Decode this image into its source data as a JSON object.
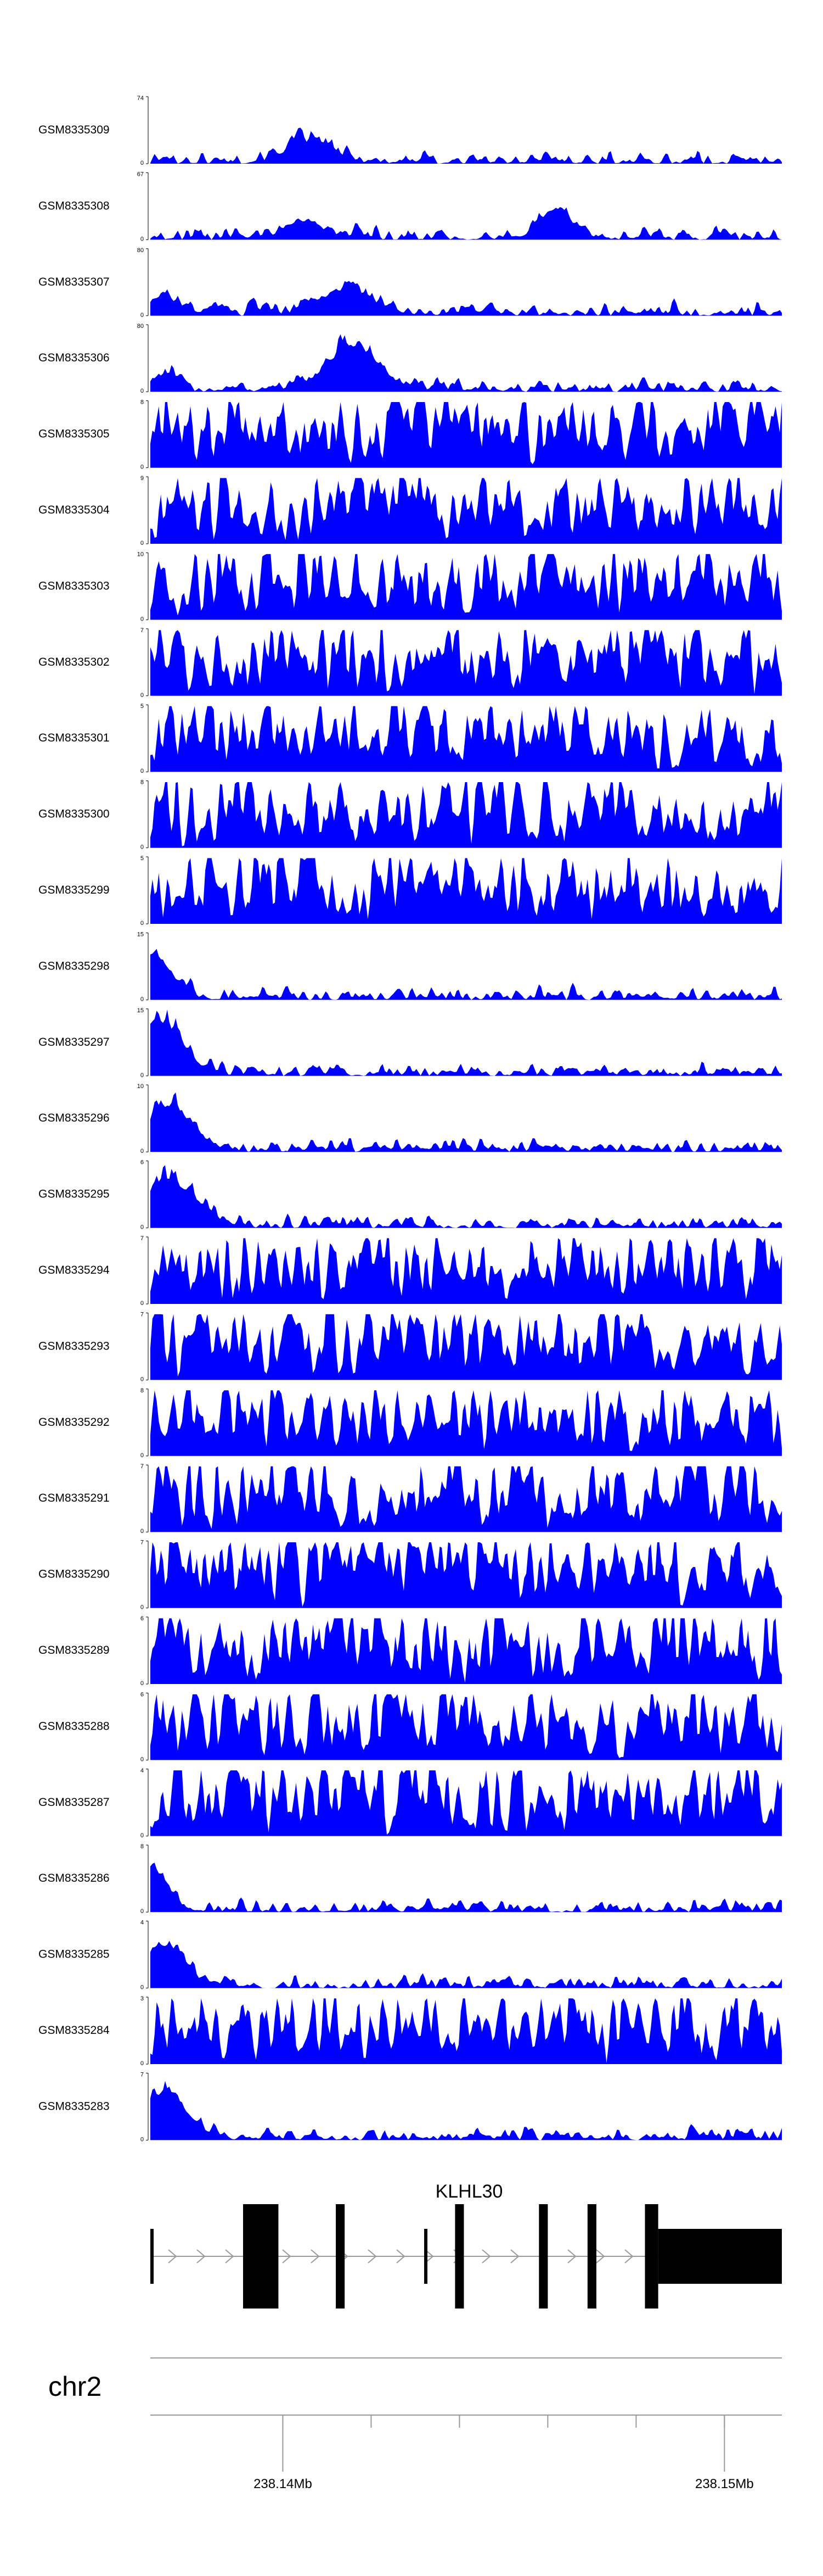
{
  "chart_data": {
    "type": "area",
    "fill_color": "#0000ff",
    "x_range_mb": [
      238.137,
      238.1513
    ],
    "tracks": [
      {
        "label": "GSM8335309",
        "ymax": "74",
        "ymin": "0",
        "peaks": [
          [
            0.25,
            0.45,
            0.7
          ]
        ],
        "seed": 101
      },
      {
        "label": "GSM8335308",
        "ymax": "67",
        "ymin": "0",
        "peaks": [
          [
            0.24,
            0.38,
            0.5
          ],
          [
            0.64,
            0.62,
            0.4
          ]
        ],
        "seed": 102
      },
      {
        "label": "GSM8335307",
        "ymax": "80",
        "ymin": "0",
        "peaks": [
          [
            0.02,
            0.38,
            0.35
          ],
          [
            0.31,
            0.52,
            0.92
          ]
        ],
        "seed": 103
      },
      {
        "label": "GSM8335306",
        "ymax": "80",
        "ymin": "0",
        "peaks": [
          [
            0.02,
            0.3,
            0.25
          ],
          [
            0.32,
            0.95,
            0.8
          ]
        ],
        "seed": 104
      },
      {
        "label": "GSM8335305",
        "ymax": "8",
        "ymin": "0",
        "peaks": [],
        "seed": 105
      },
      {
        "label": "GSM8335304",
        "ymax": "9",
        "ymin": "0",
        "peaks": [],
        "seed": 106
      },
      {
        "label": "GSM8335303",
        "ymax": "10",
        "ymin": "0",
        "peaks": [],
        "seed": 107
      },
      {
        "label": "GSM8335302",
        "ymax": "7",
        "ymin": "0",
        "peaks": [],
        "seed": 108
      },
      {
        "label": "GSM8335301",
        "ymax": "5",
        "ymin": "0",
        "peaks": [],
        "seed": 109
      },
      {
        "label": "GSM8335300",
        "ymax": "8",
        "ymin": "0",
        "peaks": [],
        "seed": 110
      },
      {
        "label": "GSM8335299",
        "ymax": "5",
        "ymin": "0",
        "peaks": [],
        "seed": 111
      },
      {
        "label": "GSM8335298",
        "ymax": "15",
        "ymin": "0",
        "peaks": [
          [
            0.0,
            0.95,
            0.6
          ]
        ],
        "seed": 112
      },
      {
        "label": "GSM8335297",
        "ymax": "15",
        "ymin": "0",
        "peaks": [
          [
            0.0,
            0.9,
            0.6
          ],
          [
            0.04,
            0.5,
            0.5
          ]
        ],
        "seed": 113
      },
      {
        "label": "GSM8335296",
        "ymax": "10",
        "ymin": "0",
        "peaks": [
          [
            0.03,
            0.95,
            0.7
          ]
        ],
        "seed": 114
      },
      {
        "label": "GSM8335295",
        "ymax": "6",
        "ymin": "0",
        "peaks": [
          [
            0.03,
            0.95,
            0.9
          ]
        ],
        "seed": 115
      },
      {
        "label": "GSM8335294",
        "ymax": "7",
        "ymin": "0",
        "peaks": [],
        "seed": 116
      },
      {
        "label": "GSM8335293",
        "ymax": "7",
        "ymin": "0",
        "peaks": [],
        "seed": 117
      },
      {
        "label": "GSM8335292",
        "ymax": "8",
        "ymin": "0",
        "peaks": [],
        "seed": 118
      },
      {
        "label": "GSM8335291",
        "ymax": "7",
        "ymin": "0",
        "peaks": [],
        "seed": 119
      },
      {
        "label": "GSM8335290",
        "ymax": "7",
        "ymin": "0",
        "peaks": [],
        "seed": 120
      },
      {
        "label": "GSM8335289",
        "ymax": "6",
        "ymin": "0",
        "peaks": [],
        "seed": 121
      },
      {
        "label": "GSM8335288",
        "ymax": "6",
        "ymin": "0",
        "peaks": [],
        "seed": 122
      },
      {
        "label": "GSM8335287",
        "ymax": "4",
        "ymin": "0",
        "peaks": [],
        "seed": 123
      },
      {
        "label": "GSM8335286",
        "ymax": "8",
        "ymin": "0",
        "peaks": [
          [
            0.0,
            0.95,
            0.4
          ]
        ],
        "seed": 124
      },
      {
        "label": "GSM8335285",
        "ymax": "4",
        "ymin": "0",
        "peaks": [
          [
            0.02,
            0.9,
            0.6
          ]
        ],
        "seed": 125
      },
      {
        "label": "GSM8335284",
        "ymax": "3",
        "ymin": "0",
        "peaks": [],
        "seed": 126
      },
      {
        "label": "GSM8335283",
        "ymax": "7",
        "ymin": "0",
        "peaks": [
          [
            0.02,
            0.95,
            0.8
          ]
        ],
        "seed": 127
      }
    ],
    "gene": {
      "name": "KLHL30",
      "exons_mb": [
        [
          238.137,
          238.1371,
          "line"
        ],
        [
          238.1391,
          238.1399,
          "block"
        ],
        [
          238.1412,
          238.1414,
          "thin"
        ],
        [
          238.1432,
          238.1433,
          "line"
        ],
        [
          238.1439,
          238.1441,
          "thin"
        ],
        [
          238.1458,
          238.146,
          "thin"
        ],
        [
          238.1469,
          238.1471,
          "thin"
        ],
        [
          238.1482,
          238.1485,
          "thin"
        ],
        [
          238.1485,
          238.1513,
          "tall"
        ]
      ]
    },
    "chromosome": "chr2",
    "axis": {
      "tick_labels": [
        {
          "mb": 238.14,
          "text": "238.14Mb"
        },
        {
          "mb": 238.15,
          "text": "238.15Mb"
        }
      ],
      "minor_ticks_mb": [
        238.14,
        238.142,
        238.144,
        238.146,
        238.148,
        238.15,
        238.152
      ]
    }
  }
}
